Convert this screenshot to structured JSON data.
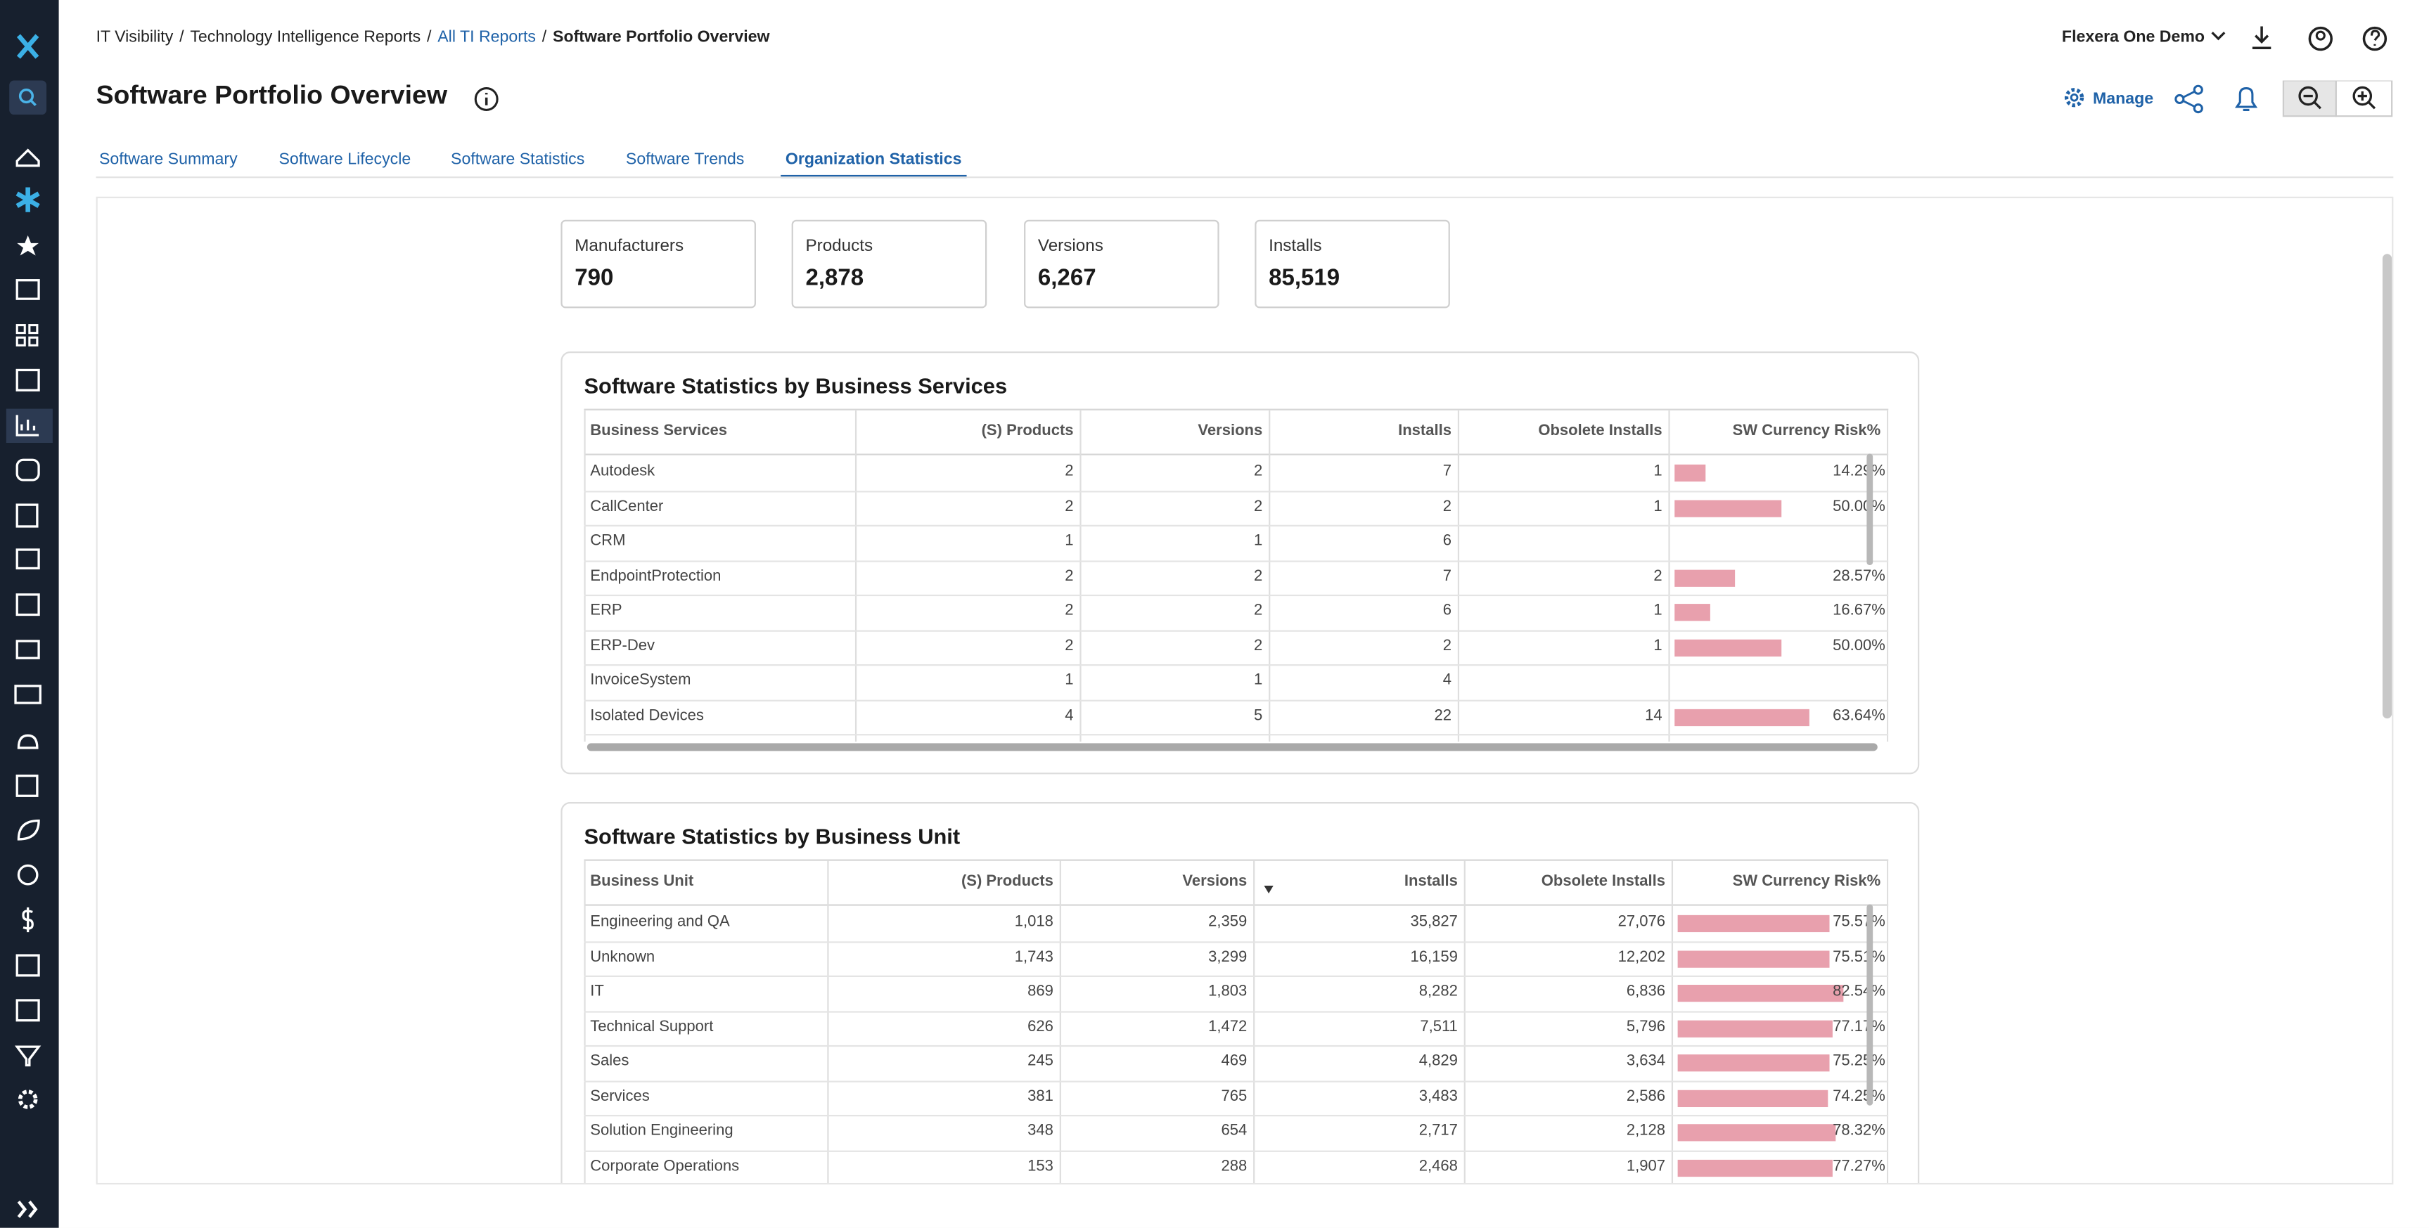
{
  "breadcrumb": {
    "items": [
      "IT Visibility",
      "Technology Intelligence Reports",
      "All TI Reports",
      "Software Portfolio Overview"
    ],
    "separator": "/"
  },
  "header": {
    "title": "Software Portfolio Overview",
    "account": "Flexera One Demo",
    "manage": "Manage"
  },
  "tabs": {
    "items": [
      "Software Summary",
      "Software Lifecycle",
      "Software Statistics",
      "Software Trends",
      "Organization Statistics"
    ],
    "active": 4
  },
  "kpis": [
    {
      "label": "Manufacturers",
      "value": "790"
    },
    {
      "label": "Products",
      "value": "2,878"
    },
    {
      "label": "Versions",
      "value": "6,267"
    },
    {
      "label": "Installs",
      "value": "85,519"
    }
  ],
  "table_services": {
    "title": "Software Statistics by Business Services",
    "columns": [
      "Business Services",
      "(S) Products",
      "Versions",
      "Installs",
      "Obsolete Installs",
      "SW Currency Risk%"
    ],
    "rows": [
      [
        "Autodesk",
        "2",
        "2",
        "7",
        "1",
        "14.29%"
      ],
      [
        "CallCenter",
        "2",
        "2",
        "2",
        "1",
        "50.00%"
      ],
      [
        "CRM",
        "1",
        "1",
        "6",
        null,
        null
      ],
      [
        "EndpointProtection",
        "2",
        "2",
        "7",
        "2",
        "28.57%"
      ],
      [
        "ERP",
        "2",
        "2",
        "6",
        "1",
        "16.67%"
      ],
      [
        "ERP-Dev",
        "2",
        "2",
        "2",
        "1",
        "50.00%"
      ],
      [
        "InvoiceSystem",
        "1",
        "1",
        "4",
        null,
        null
      ],
      [
        "Isolated Devices",
        "4",
        "5",
        "22",
        "14",
        "63.64%"
      ]
    ]
  },
  "table_units": {
    "title": "Software Statistics by Business Unit",
    "columns": [
      "Business Unit",
      "(S) Products",
      "Versions",
      "Installs",
      "Obsolete Installs",
      "SW Currency Risk%"
    ],
    "rows": [
      [
        "Engineering and QA",
        "1,018",
        "2,359",
        "35,827",
        "27,076",
        "75.57%"
      ],
      [
        "Unknown",
        "1,743",
        "3,299",
        "16,159",
        "12,202",
        "75.51%"
      ],
      [
        "IT",
        "869",
        "1,803",
        "8,282",
        "6,836",
        "82.54%"
      ],
      [
        "Technical Support",
        "626",
        "1,472",
        "7,511",
        "5,796",
        "77.17%"
      ],
      [
        "Sales",
        "245",
        "469",
        "4,829",
        "3,634",
        "75.25%"
      ],
      [
        "Services",
        "381",
        "765",
        "3,483",
        "2,586",
        "74.25%"
      ],
      [
        "Solution Engineering",
        "348",
        "654",
        "2,717",
        "2,128",
        "78.32%"
      ],
      [
        "Corporate Operations",
        "153",
        "288",
        "2,468",
        "1,907",
        "77.27%"
      ]
    ]
  }
}
